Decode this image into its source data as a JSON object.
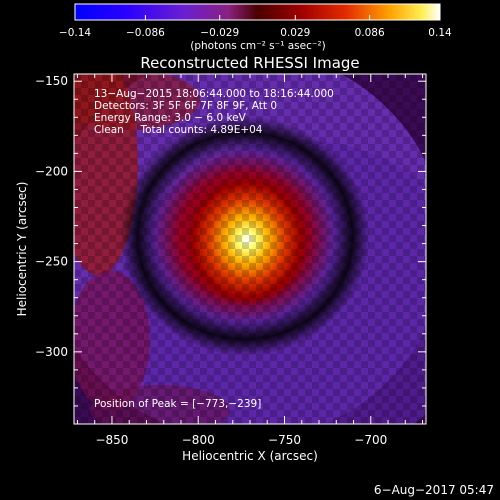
{
  "chart_data": {
    "type": "heatmap",
    "title": "Reconstructed RHESSI Image",
    "xlabel": "Heliocentric X (arcsec)",
    "ylabel": "Heliocentric Y (arcsec)",
    "xlim": [
      -872,
      -668
    ],
    "ylim": [
      -340,
      -146
    ],
    "x_ticks": [
      -850,
      -800,
      -750,
      -700
    ],
    "y_ticks": [
      -150,
      -200,
      -250,
      -300
    ],
    "x_tick_labels": [
      "−850",
      "−800",
      "−750",
      "−700"
    ],
    "y_tick_labels": [
      "−150",
      "−200",
      "−250",
      "−300"
    ],
    "colorbar": {
      "range": [
        -0.14,
        0.14
      ],
      "tick_values": [
        -0.14,
        -0.086,
        -0.029,
        0.029,
        0.086,
        0.14
      ],
      "tick_labels": [
        "−0.14",
        "−0.086",
        "−0.029",
        "0.029",
        "0.086",
        "0.14"
      ],
      "unit_label": "(photons cm⁻² s⁻¹ asec⁻²)"
    },
    "info_lines": [
      "13−Aug−2015 18:06:44.000 to 18:16:44.000",
      "Detectors: 3F 5F 6F 7F 8F 9F, Att 0",
      "Energy Range: 3.0 − 6.0 keV",
      "Clean     Total counts: 4.89E+04"
    ],
    "peak": {
      "x": -773,
      "y": -239
    },
    "peak_text": "Position of Peak = [−773,−239]",
    "grid": false
  },
  "footer": {
    "timestamp": "6−Aug−2017 05:47"
  }
}
